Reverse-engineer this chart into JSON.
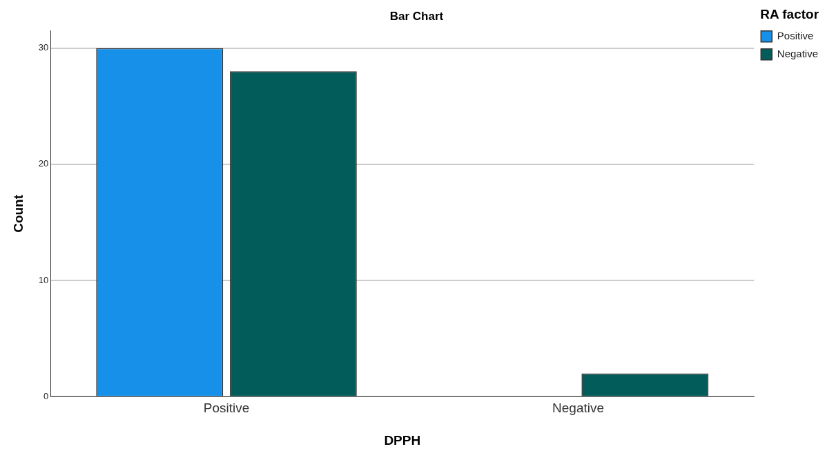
{
  "chart_data": {
    "type": "bar",
    "title": "Bar Chart",
    "xlabel": "DPPH",
    "ylabel": "Count",
    "legend_title": "RA factor",
    "categories": [
      "Positive",
      "Negative"
    ],
    "series": [
      {
        "name": "Positive",
        "color": "#1690e8",
        "values": [
          30,
          null
        ]
      },
      {
        "name": "Negative",
        "color": "#025c5a",
        "values": [
          28,
          2
        ]
      }
    ],
    "ylim": [
      0,
      31.5
    ],
    "yticks": [
      0,
      10,
      20,
      30
    ],
    "grid": "y",
    "legend": "top right"
  }
}
